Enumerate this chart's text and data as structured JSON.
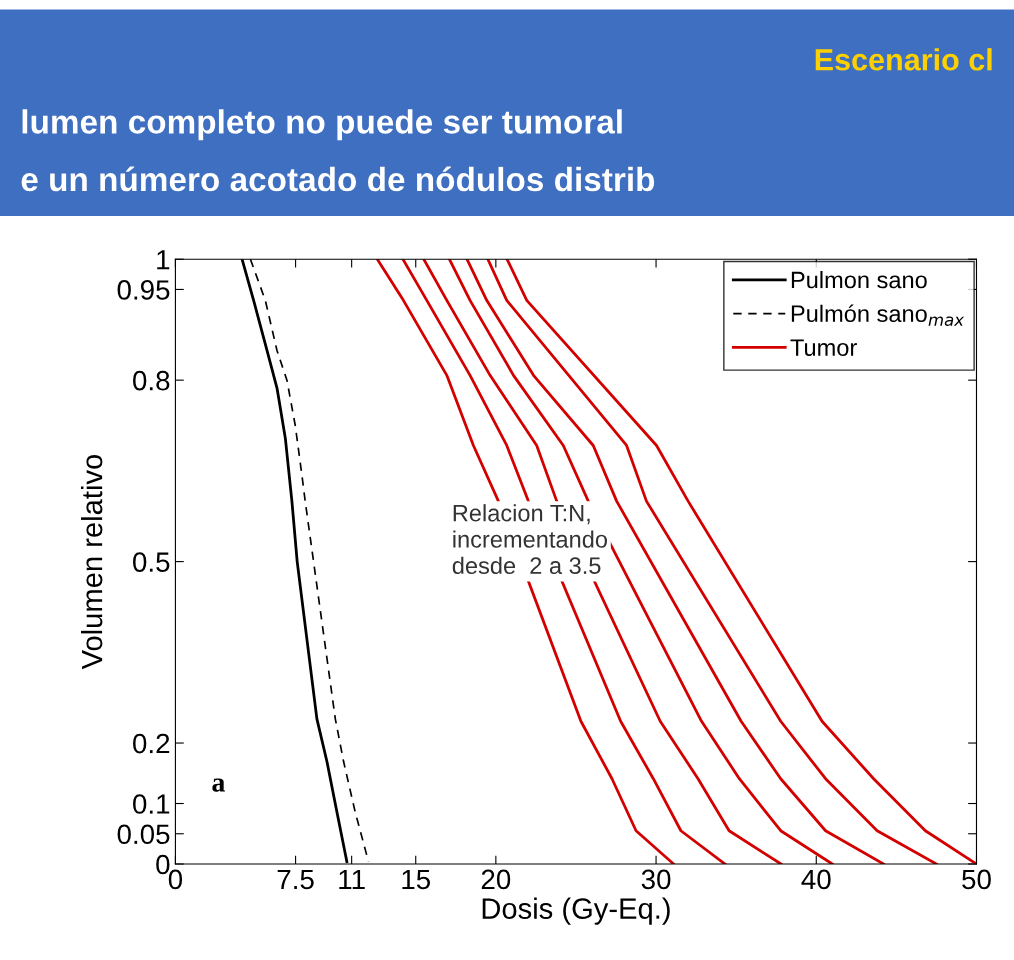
{
  "chart_data": {
    "type": "line",
    "xlabel": "Dosis (Gy-Eq.)",
    "ylabel": "Volumen relativo",
    "xlim": [
      0,
      50
    ],
    "ylim": [
      0,
      1
    ],
    "xticks": [
      0,
      7.5,
      11,
      15,
      20,
      30,
      40,
      50
    ],
    "yticks": [
      0,
      0.05,
      0.1,
      0.2,
      0.5,
      0.8,
      0.95,
      1
    ],
    "grid": false,
    "legend": "top right",
    "marker": "none",
    "annotations": [
      "a",
      "Relacion T:N,\nincrementando\ndesde  2 a 3.5",
      "Escenario cl",
      "lumen completo no puede ser tumoral",
      "e un número acotado de nódulos distrib"
    ],
    "series": [
      {
        "name": "Pulmon sano",
        "color": "#000000",
        "line_style": "solid",
        "x": [
          4.16,
          4.88,
          5.72,
          6.34,
          6.86,
          7.27,
          7.6,
          8.83,
          9.46,
          10.08,
          10.7
        ],
        "values": [
          1,
          0.932,
          0.849,
          0.787,
          0.704,
          0.6,
          0.5,
          0.24,
          0.169,
          0.086,
          0.004
        ]
      },
      {
        "name": "Pulmón sano$_{max}$",
        "color": "#000000",
        "line_style": "dashed",
        "x": [
          4.68,
          5.61,
          6.34,
          6.96,
          7.48,
          7.9,
          8.1,
          9.98,
          10.5,
          11.22,
          12.05
        ],
        "values": [
          1,
          0.932,
          0.849,
          0.8,
          0.725,
          0.642,
          0.6,
          0.24,
          0.169,
          0.086,
          0.004
        ]
      },
      {
        "name": "Tumor",
        "color": "#d40000",
        "line_style": "solid",
        "x": [
          12.6,
          14.23,
          16.94,
          18.6,
          20.16,
          25.31,
          27.25,
          28.75,
          31.1
        ],
        "values": [
          1,
          0.932,
          0.808,
          0.692,
          0.6,
          0.236,
          0.141,
          0.055,
          0
        ]
      },
      {
        "color": "#d40000",
        "line_style": "solid",
        "x": [
          14.2,
          15.69,
          18.39,
          20.68,
          22.03,
          27.79,
          29.83,
          31.55,
          34.3
        ],
        "values": [
          1,
          0.932,
          0.808,
          0.692,
          0.6,
          0.236,
          0.141,
          0.055,
          0
        ]
      },
      {
        "color": "#d40000",
        "line_style": "solid",
        "x": [
          15.5,
          16.94,
          19.64,
          22.55,
          23.8,
          30.26,
          32.62,
          34.56,
          37.8
        ],
        "values": [
          1,
          0.932,
          0.808,
          0.692,
          0.6,
          0.236,
          0.141,
          0.055,
          0
        ]
      },
      {
        "color": "#d40000",
        "line_style": "solid",
        "x": [
          17.1,
          18.39,
          21.1,
          24.21,
          25.77,
          32.84,
          35.2,
          37.78,
          41.0
        ],
        "values": [
          1,
          0.932,
          0.808,
          0.692,
          0.6,
          0.236,
          0.141,
          0.055,
          0
        ]
      },
      {
        "color": "#d40000",
        "line_style": "solid",
        "x": [
          18.2,
          19.43,
          22.35,
          26.08,
          27.54,
          35.31,
          37.78,
          40.58,
          44.2
        ],
        "values": [
          1,
          0.932,
          0.808,
          0.692,
          0.6,
          0.236,
          0.141,
          0.055,
          0
        ]
      },
      {
        "color": "#d40000",
        "line_style": "solid",
        "x": [
          19.5,
          20.68,
          28.16,
          29.4,
          37.78,
          40.58,
          43.8,
          47.5
        ],
        "values": [
          1,
          0.932,
          0.692,
          0.6,
          0.236,
          0.141,
          0.055,
          0
        ]
      },
      {
        "color": "#d40000",
        "line_style": "solid",
        "x": [
          20.7,
          21.93,
          30.03,
          32.0,
          40.36,
          43.58,
          46.81,
          50
        ],
        "values": [
          1,
          0.932,
          0.692,
          0.6,
          0.236,
          0.141,
          0.055,
          0
        ]
      }
    ]
  }
}
